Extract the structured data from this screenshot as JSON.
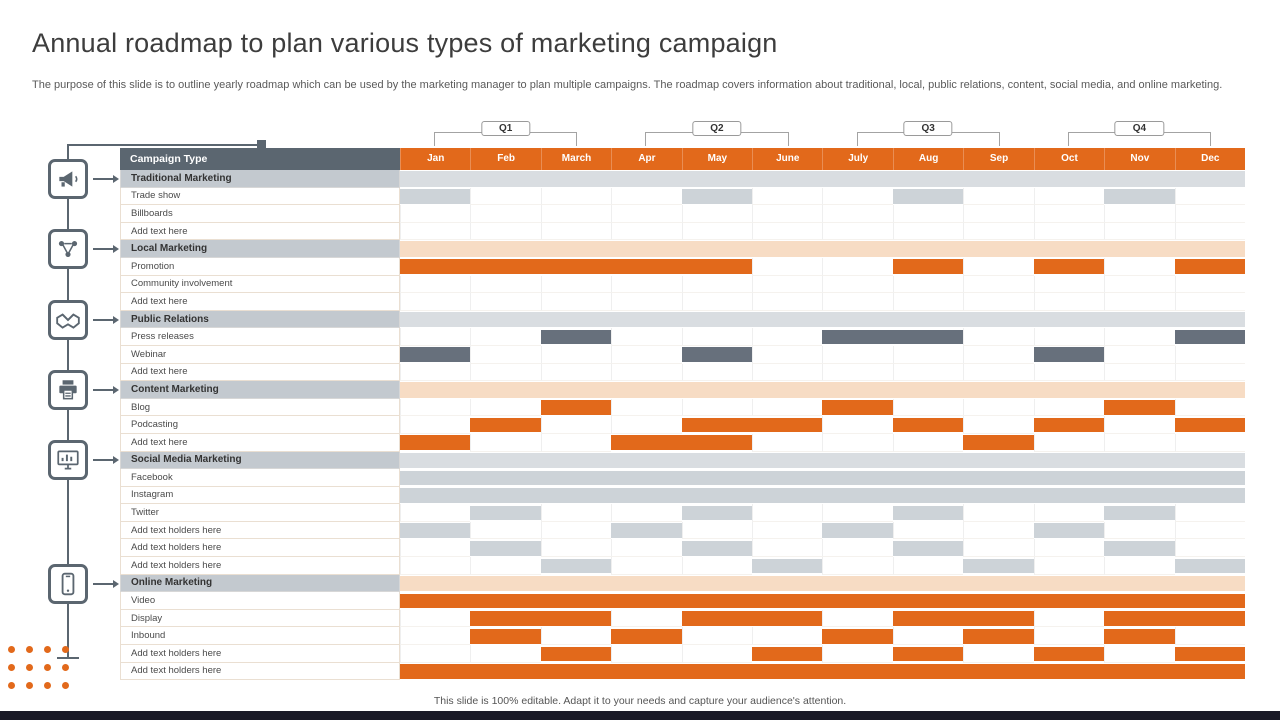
{
  "slide": {
    "title": "Annual roadmap to plan various types of marketing campaign",
    "description": "The purpose of this slide is to outline yearly roadmap which can be used by the marketing manager to plan multiple campaigns. The roadmap covers information about traditional, local, public relations, content, social media, and online marketing.",
    "footer_note": "This slide is 100% editable. Adapt it to your needs and capture your audience's attention."
  },
  "colors": {
    "accent_orange": "#E2691B",
    "slate": "#5B6670",
    "cell_gray": "#CDD3D8",
    "cell_dark_slate": "#67707C",
    "section_gray_fill": "#D9DDE1",
    "section_peach_fill": "#F7DCC4",
    "section_label_bg": "#C3C9CF",
    "bottom_bar": "#191926"
  },
  "quarters": [
    {
      "label": "Q1"
    },
    {
      "label": "Q2"
    },
    {
      "label": "Q3"
    },
    {
      "label": "Q4"
    }
  ],
  "table": {
    "corner_header": "Campaign Type",
    "months": [
      "Jan",
      "Feb",
      "March",
      "Apr",
      "May",
      "June",
      "July",
      "Aug",
      "Sep",
      "Oct",
      "Nov",
      "Dec"
    ],
    "cell_legend": {
      "g": "gray",
      "d": "dark-slate",
      "o": "orange",
      "": "empty"
    },
    "rows": [
      {
        "label": "Traditional Marketing",
        "kind": "section",
        "fill": "gray"
      },
      {
        "label": "Trade show",
        "kind": "item",
        "cells": [
          "g",
          "",
          "",
          "",
          "g",
          "",
          "",
          "g",
          "",
          "",
          "g",
          ""
        ]
      },
      {
        "label": "Billboards",
        "kind": "item",
        "cells": [
          "",
          "",
          "",
          "",
          "",
          "",
          "",
          "",
          "",
          "",
          "",
          ""
        ]
      },
      {
        "label": "Add text here",
        "kind": "item",
        "cells": [
          "",
          "",
          "",
          "",
          "",
          "",
          "",
          "",
          "",
          "",
          "",
          ""
        ]
      },
      {
        "label": "Local Marketing",
        "kind": "section",
        "fill": "peach"
      },
      {
        "label": "Promotion",
        "kind": "item",
        "cells": [
          "o",
          "o",
          "o",
          "o",
          "o",
          "",
          "",
          "o",
          "",
          "o",
          "",
          "o"
        ]
      },
      {
        "label": "Community involvement",
        "kind": "item",
        "cells": [
          "",
          "",
          "",
          "",
          "",
          "",
          "",
          "",
          "",
          "",
          "",
          ""
        ]
      },
      {
        "label": "Add text here",
        "kind": "item",
        "cells": [
          "",
          "",
          "",
          "",
          "",
          "",
          "",
          "",
          "",
          "",
          "",
          ""
        ]
      },
      {
        "label": "Public Relations",
        "kind": "section",
        "fill": "gray"
      },
      {
        "label": "Press releases",
        "kind": "item",
        "cells": [
          "",
          "",
          "d",
          "",
          "",
          "",
          "d",
          "d",
          "",
          "",
          "",
          "d"
        ]
      },
      {
        "label": "Webinar",
        "kind": "item",
        "cells": [
          "d",
          "",
          "",
          "",
          "d",
          "",
          "",
          "",
          "",
          "d",
          "",
          ""
        ]
      },
      {
        "label": "Add text here",
        "kind": "item",
        "cells": [
          "",
          "",
          "",
          "",
          "",
          "",
          "",
          "",
          "",
          "",
          "",
          ""
        ]
      },
      {
        "label": "Content Marketing",
        "kind": "section",
        "fill": "peach"
      },
      {
        "label": "Blog",
        "kind": "item",
        "cells": [
          "",
          "",
          "o",
          "",
          "",
          "",
          "o",
          "",
          "",
          "",
          "o",
          ""
        ]
      },
      {
        "label": "Podcasting",
        "kind": "item",
        "cells": [
          "",
          "o",
          "",
          "",
          "o",
          "o",
          "",
          "o",
          "",
          "o",
          "",
          "o"
        ]
      },
      {
        "label": "Add text here",
        "kind": "item",
        "cells": [
          "o",
          "",
          "",
          "o",
          "o",
          "",
          "",
          "",
          "o",
          "",
          "",
          ""
        ]
      },
      {
        "label": "Social Media Marketing",
        "kind": "section",
        "fill": "gray"
      },
      {
        "label": "Facebook",
        "kind": "item",
        "cells": [
          "g",
          "g",
          "g",
          "g",
          "g",
          "g",
          "g",
          "g",
          "g",
          "g",
          "g",
          "g"
        ]
      },
      {
        "label": "Instagram",
        "kind": "item",
        "cells": [
          "g",
          "g",
          "g",
          "g",
          "g",
          "g",
          "g",
          "g",
          "g",
          "g",
          "g",
          "g"
        ]
      },
      {
        "label": "Twitter",
        "kind": "item",
        "cells": [
          "",
          "g",
          "",
          "",
          "g",
          "",
          "",
          "g",
          "",
          "",
          "g",
          ""
        ]
      },
      {
        "label": "Add text holders here",
        "kind": "item",
        "cells": [
          "g",
          "",
          "",
          "g",
          "",
          "",
          "g",
          "",
          "",
          "g",
          "",
          ""
        ]
      },
      {
        "label": "Add text holders here",
        "kind": "item",
        "cells": [
          "",
          "g",
          "",
          "",
          "g",
          "",
          "",
          "g",
          "",
          "",
          "g",
          ""
        ]
      },
      {
        "label": "Add text holders here",
        "kind": "item",
        "cells": [
          "",
          "",
          "g",
          "",
          "",
          "g",
          "",
          "",
          "g",
          "",
          "",
          "g"
        ]
      },
      {
        "label": "Online Marketing",
        "kind": "section",
        "fill": "peach"
      },
      {
        "label": "Video",
        "kind": "item",
        "cells": [
          "o",
          "o",
          "o",
          "o",
          "o",
          "o",
          "o",
          "o",
          "o",
          "o",
          "o",
          "o"
        ]
      },
      {
        "label": "Display",
        "kind": "item",
        "cells": [
          "",
          "o",
          "o",
          "",
          "o",
          "o",
          "",
          "o",
          "o",
          "",
          "o",
          "o"
        ]
      },
      {
        "label": "Inbound",
        "kind": "item",
        "cells": [
          "",
          "o",
          "",
          "o",
          "",
          "",
          "o",
          "",
          "o",
          "",
          "o",
          ""
        ]
      },
      {
        "label": "Add text holders here",
        "kind": "item",
        "cells": [
          "",
          "",
          "o",
          "",
          "",
          "o",
          "",
          "o",
          "",
          "o",
          "",
          "o"
        ]
      },
      {
        "label": "Add text holders here",
        "kind": "item",
        "cells": [
          "o",
          "o",
          "o",
          "o",
          "o",
          "o",
          "o",
          "o",
          "o",
          "o",
          "o",
          "o"
        ]
      }
    ]
  },
  "sidebar": {
    "icons": [
      {
        "name": "megaphone-icon",
        "section": "Traditional Marketing"
      },
      {
        "name": "collaboration-icon",
        "section": "Local Marketing"
      },
      {
        "name": "handshake-icon",
        "section": "Public Relations"
      },
      {
        "name": "printer-icon",
        "section": "Content Marketing"
      },
      {
        "name": "social-devices-icon",
        "section": "Social Media Marketing"
      },
      {
        "name": "mobile-marketing-icon",
        "section": "Online Marketing"
      }
    ]
  },
  "decor": {
    "dot_rows": 3,
    "dot_cols": 4
  }
}
